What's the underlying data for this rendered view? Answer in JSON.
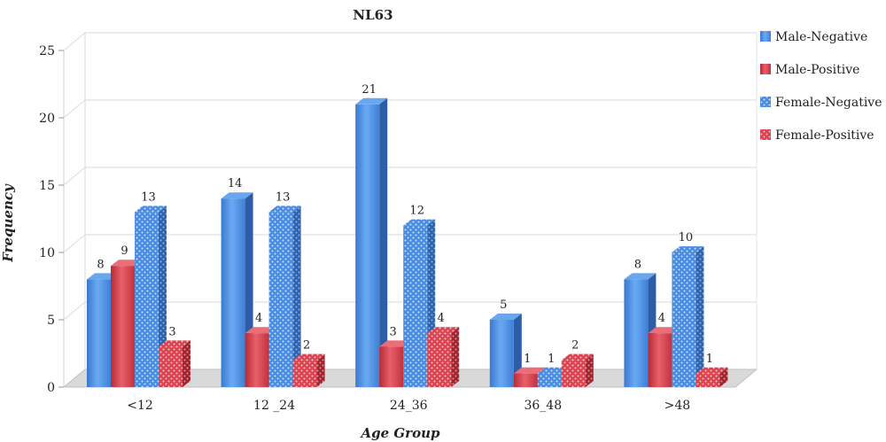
{
  "chart_data": {
    "type": "bar",
    "title": "NL63",
    "xlabel": "Age Group",
    "ylabel": "Frequency",
    "ylim": [
      0,
      25
    ],
    "yticks": [
      "0",
      "5",
      "10",
      "15",
      "20",
      "25"
    ],
    "categories": [
      "<12",
      "12 _24",
      "24_36",
      "36_48",
      ">48"
    ],
    "grid": true,
    "legend_position": "right",
    "series": [
      {
        "name": "Male-Negative",
        "values": [
          8,
          14,
          21,
          5,
          8
        ],
        "color": "#4a8de0",
        "pattern": "solid"
      },
      {
        "name": "Male-Positive",
        "values": [
          9,
          4,
          3,
          1,
          4
        ],
        "color": "#d94450",
        "pattern": "solid"
      },
      {
        "name": "Female-Negative",
        "values": [
          13,
          13,
          12,
          1,
          10
        ],
        "color": "#4a8de0",
        "pattern": "dots"
      },
      {
        "name": "Female-Positive",
        "values": [
          3,
          2,
          4,
          2,
          1
        ],
        "color": "#d94450",
        "pattern": "dots"
      }
    ]
  }
}
